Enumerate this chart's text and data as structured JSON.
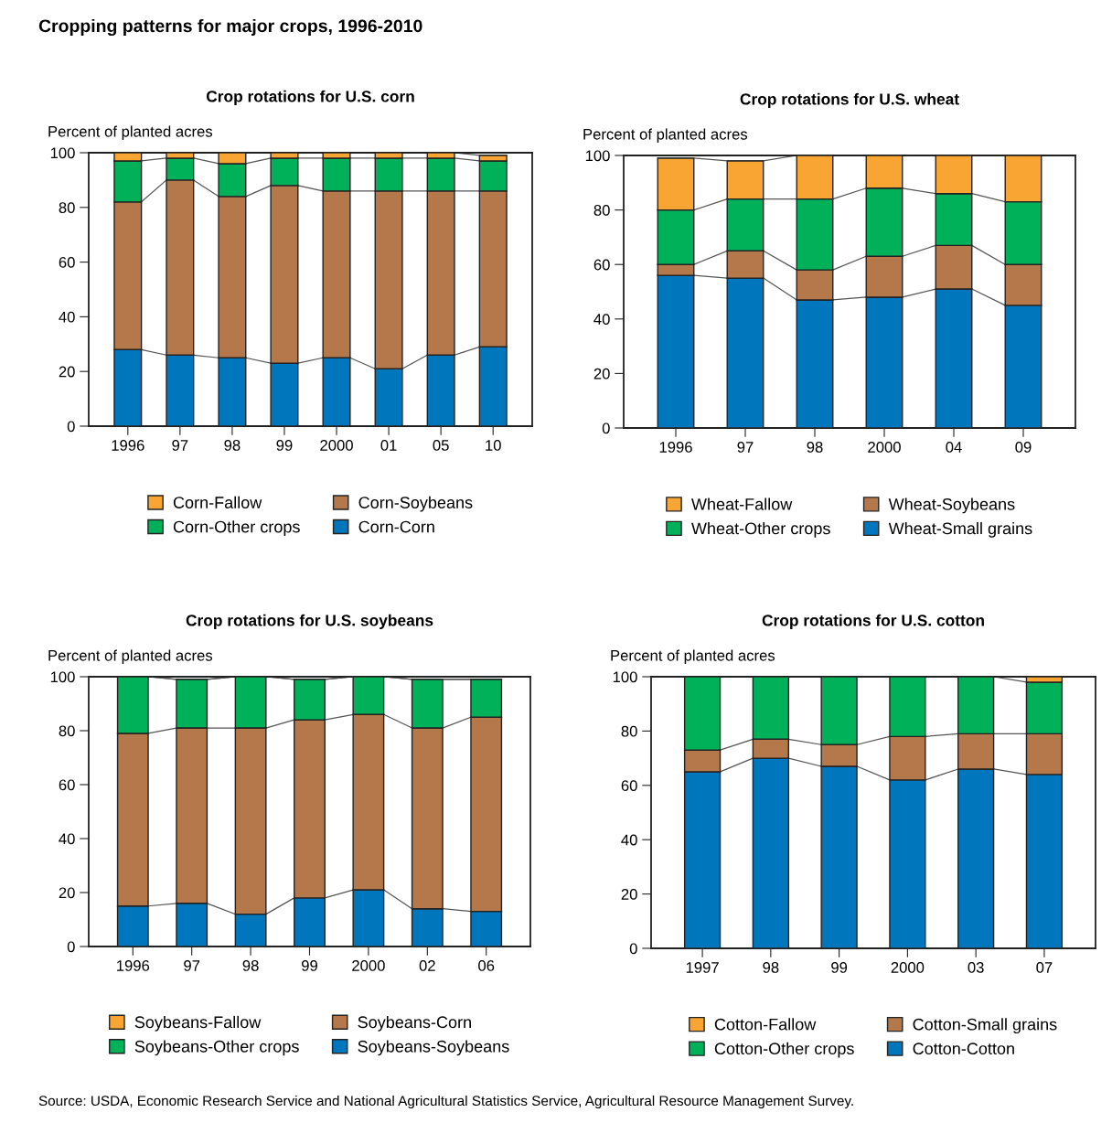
{
  "chart_data": [
    {
      "type": "bar",
      "stacked": true,
      "title": "Crop rotations for U.S. corn",
      "ylabel": "Percent of planted acres",
      "annotations": [
        "Cropping patterns for major crops, 1996-2010"
      ],
      "categories": [
        "1996",
        "97",
        "98",
        "99",
        "2000",
        "01",
        "05",
        "10"
      ],
      "ylim": [
        0,
        100
      ],
      "yticks": [
        0,
        20,
        40,
        60,
        80,
        100
      ],
      "grid": false,
      "legend": "bottom",
      "series": [
        {
          "name": "Corn-Corn",
          "color": "#0077bd",
          "values": [
            28,
            26,
            25,
            23,
            25,
            21,
            26,
            29
          ]
        },
        {
          "name": "Corn-Soybeans",
          "color": "#b5784a",
          "values": [
            54,
            64,
            59,
            65,
            61,
            65,
            60,
            57
          ]
        },
        {
          "name": "Corn-Other crops",
          "color": "#00b159",
          "values": [
            15,
            8,
            12,
            10,
            12,
            12,
            12,
            11
          ]
        },
        {
          "name": "Corn-Fallow",
          "color": "#f9a533",
          "values": [
            3,
            2,
            4,
            2,
            2,
            2,
            2,
            2
          ]
        }
      ]
    },
    {
      "type": "bar",
      "stacked": true,
      "title": "Crop rotations for U.S. wheat",
      "ylabel": "Percent of planted acres",
      "categories": [
        "1996",
        "97",
        "98",
        "2000",
        "04",
        "09"
      ],
      "ylim": [
        0,
        100
      ],
      "yticks": [
        0,
        20,
        40,
        60,
        80,
        100
      ],
      "grid": false,
      "legend": "bottom",
      "series": [
        {
          "name": "Wheat-Small grains",
          "color": "#0077bd",
          "values": [
            56,
            55,
            47,
            48,
            51,
            45
          ]
        },
        {
          "name": "Wheat-Soybeans",
          "color": "#b5784a",
          "values": [
            4,
            10,
            11,
            15,
            16,
            15
          ]
        },
        {
          "name": "Wheat-Other crops",
          "color": "#00b159",
          "values": [
            20,
            19,
            26,
            25,
            19,
            23
          ]
        },
        {
          "name": "Wheat-Fallow",
          "color": "#f9a533",
          "values": [
            19,
            14,
            16,
            12,
            14,
            17
          ]
        }
      ]
    },
    {
      "type": "bar",
      "stacked": true,
      "title": "Crop rotations for U.S. soybeans",
      "ylabel": "Percent of planted acres",
      "categories": [
        "1996",
        "97",
        "98",
        "99",
        "2000",
        "02",
        "06"
      ],
      "ylim": [
        0,
        100
      ],
      "yticks": [
        0,
        20,
        40,
        60,
        80,
        100
      ],
      "grid": false,
      "legend": "bottom",
      "series": [
        {
          "name": "Soybeans-Soybeans",
          "color": "#0077bd",
          "values": [
            15,
            16,
            12,
            18,
            21,
            14,
            13
          ]
        },
        {
          "name": "Soybeans-Corn",
          "color": "#b5784a",
          "values": [
            64,
            65,
            69,
            66,
            65,
            67,
            72
          ]
        },
        {
          "name": "Soybeans-Other crops",
          "color": "#00b159",
          "values": [
            21,
            18,
            19,
            15,
            14,
            18,
            14
          ]
        },
        {
          "name": "Soybeans-Fallow",
          "color": "#f9a533",
          "values": [
            null,
            null,
            null,
            null,
            null,
            null,
            null
          ]
        }
      ]
    },
    {
      "type": "bar",
      "stacked": true,
      "title": "Crop rotations for U.S. cotton",
      "ylabel": "Percent of planted acres",
      "annotations": [
        "Source: USDA, Economic Research Service and National Agricultural Statistics Service, Agricultural Resource Management Survey."
      ],
      "categories": [
        "1997",
        "98",
        "99",
        "2000",
        "03",
        "07"
      ],
      "ylim": [
        0,
        100
      ],
      "yticks": [
        0,
        20,
        40,
        60,
        80,
        100
      ],
      "grid": false,
      "legend": "bottom",
      "series": [
        {
          "name": "Cotton-Cotton",
          "color": "#0077bd",
          "values": [
            65,
            70,
            67,
            62,
            66,
            64
          ]
        },
        {
          "name": "Cotton-Small grains",
          "color": "#b5784a",
          "values": [
            8,
            7,
            8,
            16,
            13,
            15
          ]
        },
        {
          "name": "Cotton-Other crops",
          "color": "#00b159",
          "values": [
            27,
            23,
            25,
            22,
            21,
            19
          ]
        },
        {
          "name": "Cotton-Fallow",
          "color": "#f9a533",
          "values": [
            null,
            null,
            null,
            null,
            null,
            2
          ]
        }
      ]
    }
  ]
}
